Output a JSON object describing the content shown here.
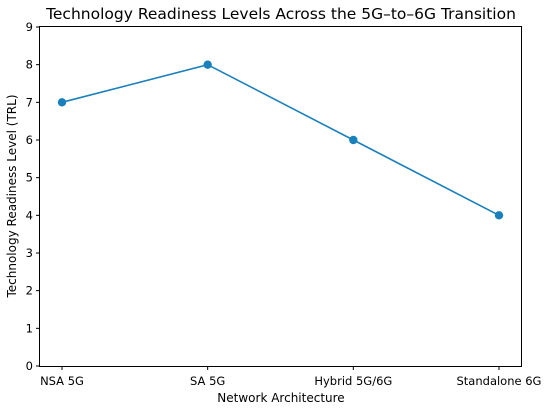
{
  "chart_data": {
    "type": "line",
    "title": "Technology Readiness Levels Across the 5G–to–6G Transition",
    "xlabel": "Network Architecture",
    "ylabel": "Technology Readiness Level (TRL)",
    "categories": [
      "NSA 5G",
      "SA 5G",
      "Hybrid 5G/6G",
      "Standalone 6G"
    ],
    "series": [
      {
        "values": [
          7,
          8,
          6,
          4
        ]
      }
    ],
    "ylim": [
      0,
      9
    ],
    "yticks": [
      "0",
      "1",
      "2",
      "3",
      "4",
      "5",
      "6",
      "7",
      "8",
      "9"
    ],
    "grid": false,
    "line_color": "#1a80bb",
    "marker_color": "#1a80bb"
  }
}
